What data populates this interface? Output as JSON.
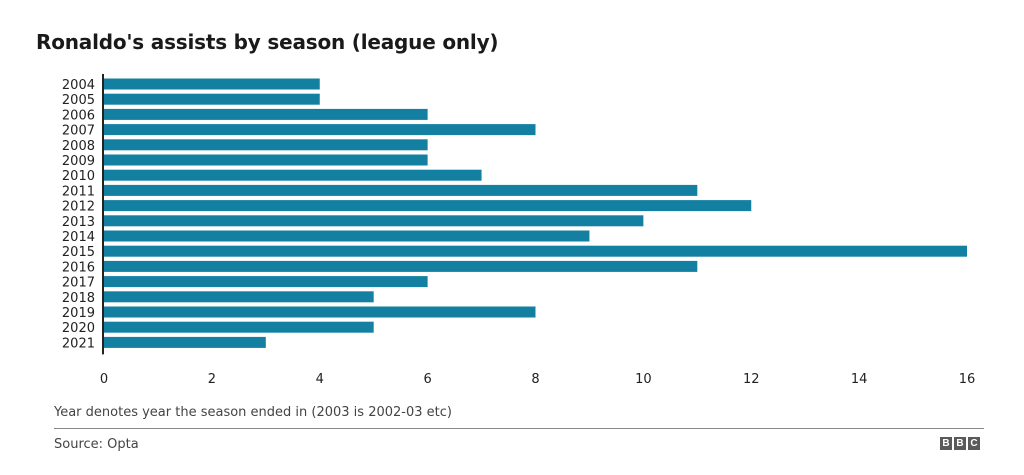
{
  "chart_data": {
    "type": "bar",
    "orientation": "horizontal",
    "title": "Ronaldo's assists by season (league only)",
    "categories": [
      "2004",
      "2005",
      "2006",
      "2007",
      "2008",
      "2009",
      "2010",
      "2011",
      "2012",
      "2013",
      "2014",
      "2015",
      "2016",
      "2017",
      "2018",
      "2019",
      "2020",
      "2021"
    ],
    "values": [
      4,
      4,
      6,
      8,
      6,
      6,
      7,
      11,
      12,
      10,
      9,
      16,
      11,
      6,
      5,
      8,
      5,
      3
    ],
    "xlabel": "",
    "ylabel": "",
    "xlim": [
      0,
      16
    ],
    "xticks": [
      0,
      2,
      4,
      6,
      8,
      10,
      12,
      14,
      16
    ],
    "grid": false,
    "bar_color": "#1380a1"
  },
  "footer": {
    "note": "Year denotes year the season ended in (2003 is 2002-03 etc)",
    "source": "Source: Opta",
    "logo_letters": [
      "B",
      "B",
      "C"
    ]
  }
}
